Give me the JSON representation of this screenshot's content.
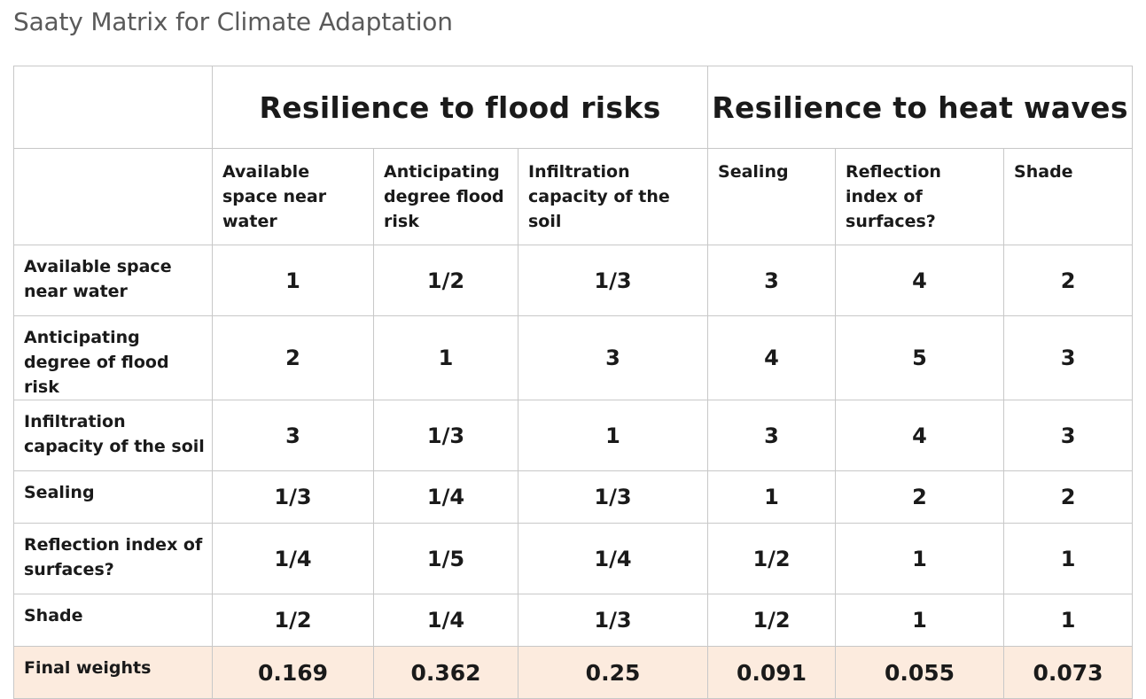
{
  "page": {
    "title": "Saaty Matrix for Climate Adaptation"
  },
  "groups": [
    {
      "label": "Resilience to flood risks"
    },
    {
      "label": "Resilience to heat waves"
    }
  ],
  "columns": [
    "Available space near water",
    "Anticipating degree flood risk",
    "Infiltration capacity of the soil",
    "Sealing",
    "Reflection index of surfaces?",
    "Shade"
  ],
  "rows": [
    {
      "label": "Available space near water",
      "values": [
        "1",
        "1/2",
        "1/3",
        "3",
        "4",
        "2"
      ]
    },
    {
      "label": "Anticipating degree of flood risk",
      "values": [
        "2",
        "1",
        "3",
        "4",
        "5",
        "3"
      ]
    },
    {
      "label": "Infiltration capacity of the soil",
      "values": [
        "3",
        "1/3",
        "1",
        "3",
        "4",
        "3"
      ]
    },
    {
      "label": "Sealing",
      "values": [
        "1/3",
        "1/4",
        "1/3",
        "1",
        "2",
        "2"
      ]
    },
    {
      "label": "Reflection index of surfaces?",
      "values": [
        "1/4",
        "1/5",
        "1/4",
        "1/2",
        "1",
        "1"
      ]
    },
    {
      "label": "Shade",
      "values": [
        "1/2",
        "1/4",
        "1/3",
        "1/2",
        "1",
        "1"
      ]
    }
  ],
  "final_weights": {
    "label": "Final weights",
    "values": [
      "0.169",
      "0.362",
      "0.25",
      "0.091",
      "0.055",
      "0.073"
    ]
  },
  "colors": {
    "highlight_row": "#fcebde",
    "border": "#c8c8c8",
    "title": "#5a5a5a"
  }
}
